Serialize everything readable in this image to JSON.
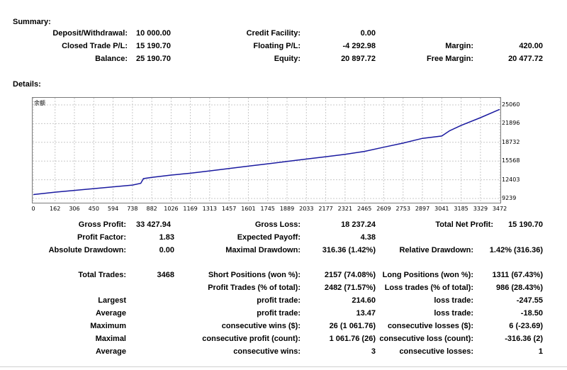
{
  "summary": {
    "title": "Summary:",
    "deposit_label": "Deposit/Withdrawal:",
    "deposit_value": "10 000.00",
    "credit_label": "Credit Facility:",
    "credit_value": "0.00",
    "closed_label": "Closed Trade P/L:",
    "closed_value": "15 190.70",
    "floating_label": "Floating P/L:",
    "floating_value": "-4 292.98",
    "margin_label": "Margin:",
    "margin_value": "420.00",
    "balance_label": "Balance:",
    "balance_value": "25 190.70",
    "equity_label": "Equity:",
    "equity_value": "20 897.72",
    "free_margin_label": "Free Margin:",
    "free_margin_value": "20 477.72"
  },
  "details": {
    "title": "Details:"
  },
  "chart_data": {
    "type": "line",
    "legend": "余额",
    "line_color": "#1a1aa0",
    "x_ticks": [
      "0",
      "162",
      "306",
      "450",
      "594",
      "738",
      "882",
      "1026",
      "1169",
      "1313",
      "1457",
      "1601",
      "1745",
      "1889",
      "2033",
      "2177",
      "2321",
      "2465",
      "2609",
      "2753",
      "2897",
      "3041",
      "3185",
      "3329",
      "3472"
    ],
    "y_ticks": [
      "25060",
      "21896",
      "18732",
      "15568",
      "12403",
      "9239"
    ],
    "ylim": [
      9239,
      25060
    ],
    "xlim": [
      0,
      3472
    ],
    "x": [
      0,
      162,
      306,
      450,
      594,
      738,
      800,
      820,
      882,
      1026,
      1169,
      1313,
      1457,
      1601,
      1745,
      1889,
      2033,
      2177,
      2321,
      2465,
      2609,
      2753,
      2897,
      3041,
      3100,
      3185,
      3329,
      3472
    ],
    "y": [
      9900,
      10300,
      10600,
      10900,
      11200,
      11500,
      11800,
      12600,
      12800,
      13200,
      13500,
      13900,
      14300,
      14700,
      15100,
      15500,
      15900,
      16300,
      16700,
      17200,
      17900,
      18600,
      19400,
      19800,
      20700,
      21600,
      22900,
      24300
    ]
  },
  "stats": {
    "gross_profit_label": "Gross Profit:",
    "gross_profit_value": "33 427.94",
    "gross_loss_label": "Gross Loss:",
    "gross_loss_value": "18 237.24",
    "total_net_label": "Total Net Profit:",
    "total_net_value": "15 190.70",
    "profit_factor_label": "Profit Factor:",
    "profit_factor_value": "1.83",
    "expected_payoff_label": "Expected Payoff:",
    "expected_payoff_value": "4.38",
    "abs_dd_label": "Absolute Drawdown:",
    "abs_dd_value": "0.00",
    "max_dd_label": "Maximal Drawdown:",
    "max_dd_value": "316.36 (1.42%)",
    "rel_dd_label": "Relative Drawdown:",
    "rel_dd_value": "1.42% (316.36)",
    "total_trades_label": "Total Trades:",
    "total_trades_value": "3468",
    "short_label": "Short Positions (won %):",
    "short_value": "2157 (74.08%)",
    "long_label": "Long Positions (won %):",
    "long_value": "1311 (67.43%)",
    "profit_trades_label": "Profit Trades (% of total):",
    "profit_trades_value": "2482 (71.57%)",
    "loss_trades_label": "Loss trades (% of total):",
    "loss_trades_value": "986 (28.43%)",
    "largest_label": "Largest",
    "largest_profit_label": "profit trade:",
    "largest_profit_value": "214.60",
    "largest_loss_label": "loss trade:",
    "largest_loss_value": "-247.55",
    "average_label": "Average",
    "average_profit_label": "profit trade:",
    "average_profit_value": "13.47",
    "average_loss_label": "loss trade:",
    "average_loss_value": "-18.50",
    "maximum_label": "Maximum",
    "max_cons_wins_label": "consecutive wins ($):",
    "max_cons_wins_value": "26 (1 061.76)",
    "max_cons_losses_label": "consecutive losses ($):",
    "max_cons_losses_value": "6 (-23.69)",
    "maximal_label": "Maximal",
    "maximal_profit_label": "consecutive profit (count):",
    "maximal_profit_value": "1 061.76 (26)",
    "maximal_loss_label": "consecutive loss (count):",
    "maximal_loss_value": "-316.36 (2)",
    "average2_label": "Average",
    "avg_cons_wins_label": "consecutive wins:",
    "avg_cons_wins_value": "3",
    "avg_cons_losses_label": "consecutive losses:",
    "avg_cons_losses_value": "1"
  }
}
